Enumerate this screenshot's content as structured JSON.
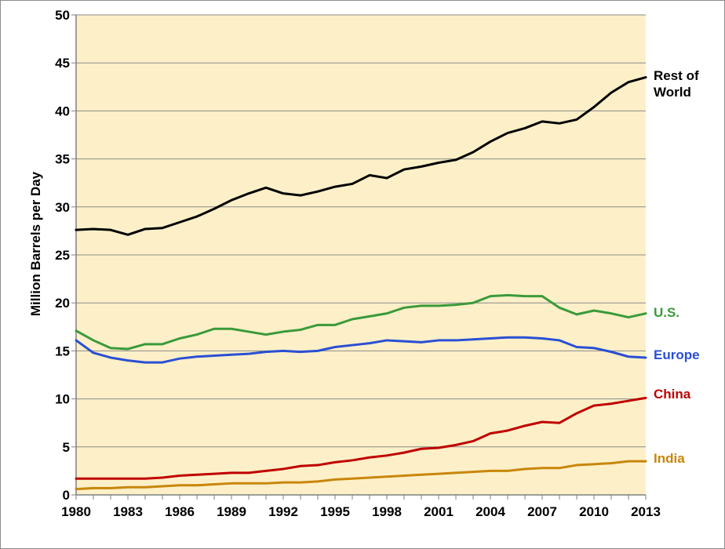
{
  "chart_data": {
    "type": "line",
    "title": "",
    "xlabel": "",
    "ylabel": "Million Barrels per Day",
    "ylim": [
      0,
      50
    ],
    "yticks": [
      "0",
      "5",
      "10",
      "15",
      "20",
      "25",
      "30",
      "35",
      "40",
      "45",
      "50"
    ],
    "xlim": [
      1980,
      2013
    ],
    "xticks": [
      "1980",
      "1983",
      "1986",
      "1989",
      "1992",
      "1995",
      "1998",
      "2001",
      "2004",
      "2007",
      "2010",
      "2013"
    ],
    "grid": "horizontal",
    "plot_background": "#fdf0c8",
    "x": [
      1980,
      1981,
      1982,
      1983,
      1984,
      1985,
      1986,
      1987,
      1988,
      1989,
      1990,
      1991,
      1992,
      1993,
      1994,
      1995,
      1996,
      1997,
      1998,
      1999,
      2000,
      2001,
      2002,
      2003,
      2004,
      2005,
      2006,
      2007,
      2008,
      2009,
      2010,
      2011,
      2012,
      2013
    ],
    "series": [
      {
        "name": "Rest of World",
        "label_lines": [
          "Rest of",
          "World"
        ],
        "color": "#000000",
        "values": [
          27.6,
          27.7,
          27.6,
          27.1,
          27.7,
          27.8,
          28.4,
          29.0,
          29.8,
          30.7,
          31.4,
          32.0,
          31.4,
          31.2,
          31.6,
          32.1,
          32.4,
          33.3,
          33.0,
          33.9,
          34.2,
          34.6,
          34.9,
          35.7,
          36.8,
          37.7,
          38.2,
          38.9,
          38.7,
          39.1,
          40.4,
          41.9,
          43.0,
          43.5
        ]
      },
      {
        "name": "U.S.",
        "label_lines": [
          "U.S."
        ],
        "color": "#3a9a3a",
        "values": [
          17.1,
          16.1,
          15.3,
          15.2,
          15.7,
          15.7,
          16.3,
          16.7,
          17.3,
          17.3,
          17.0,
          16.7,
          17.0,
          17.2,
          17.7,
          17.7,
          18.3,
          18.6,
          18.9,
          19.5,
          19.7,
          19.7,
          19.8,
          20.0,
          20.7,
          20.8,
          20.7,
          20.7,
          19.5,
          18.8,
          19.2,
          18.9,
          18.5,
          18.9
        ]
      },
      {
        "name": "Europe",
        "label_lines": [
          "Europe"
        ],
        "color": "#2a4fd4",
        "values": [
          16.1,
          14.8,
          14.3,
          14.0,
          13.8,
          13.8,
          14.2,
          14.4,
          14.5,
          14.6,
          14.7,
          14.9,
          15.0,
          14.9,
          15.0,
          15.4,
          15.6,
          15.8,
          16.1,
          16.0,
          15.9,
          16.1,
          16.1,
          16.2,
          16.3,
          16.4,
          16.4,
          16.3,
          16.1,
          15.4,
          15.3,
          14.9,
          14.4,
          14.3
        ]
      },
      {
        "name": "China",
        "label_lines": [
          "China"
        ],
        "color": "#c00000",
        "values": [
          1.7,
          1.7,
          1.7,
          1.7,
          1.7,
          1.8,
          2.0,
          2.1,
          2.2,
          2.3,
          2.3,
          2.5,
          2.7,
          3.0,
          3.1,
          3.4,
          3.6,
          3.9,
          4.1,
          4.4,
          4.8,
          4.9,
          5.2,
          5.6,
          6.4,
          6.7,
          7.2,
          7.6,
          7.5,
          8.5,
          9.3,
          9.5,
          9.8,
          10.1
        ]
      },
      {
        "name": "India",
        "label_lines": [
          "India"
        ],
        "color": "#c8860a",
        "values": [
          0.6,
          0.7,
          0.7,
          0.8,
          0.8,
          0.9,
          1.0,
          1.0,
          1.1,
          1.2,
          1.2,
          1.2,
          1.3,
          1.3,
          1.4,
          1.6,
          1.7,
          1.8,
          1.9,
          2.0,
          2.1,
          2.2,
          2.3,
          2.4,
          2.5,
          2.5,
          2.7,
          2.8,
          2.8,
          3.1,
          3.2,
          3.3,
          3.5,
          3.5
        ]
      }
    ]
  }
}
